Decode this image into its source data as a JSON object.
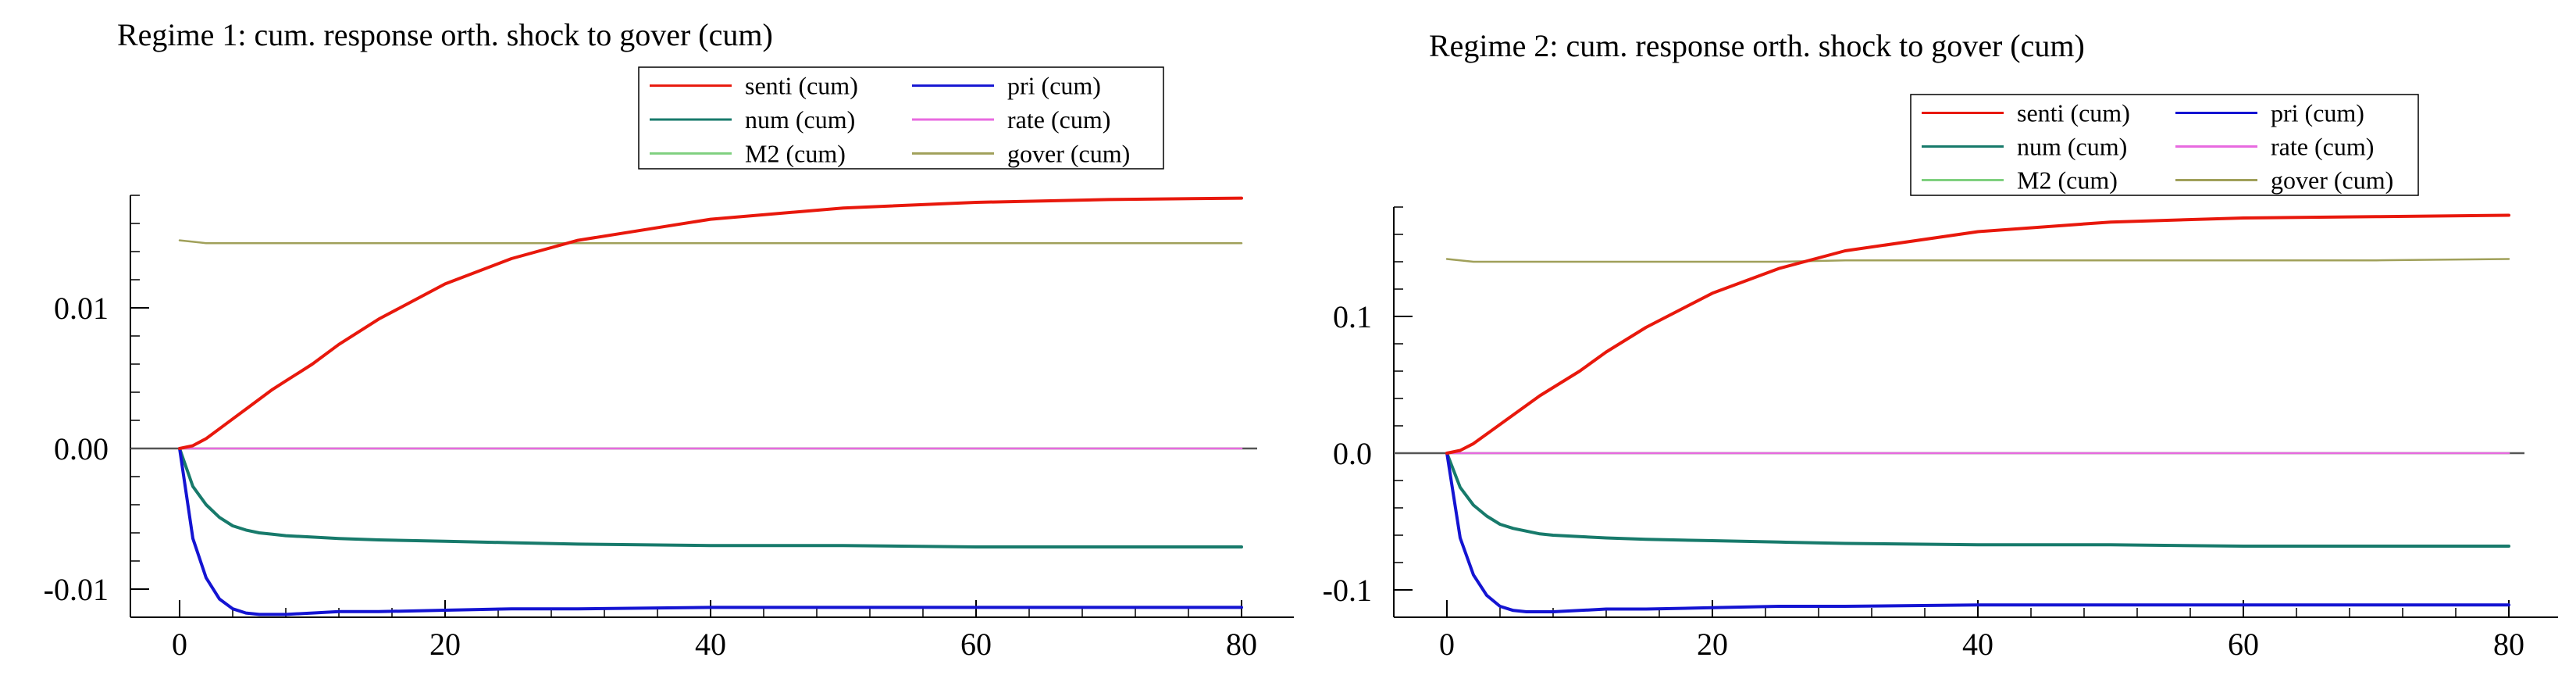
{
  "chart_data": [
    {
      "type": "line",
      "title": "Regime 1: cum. response orth. shock to gover (cum)",
      "xlabel": "",
      "ylabel": "",
      "xlim": [
        0,
        80
      ],
      "ylim": [
        -0.012,
        0.018
      ],
      "xticks": [
        0,
        20,
        40,
        60,
        80
      ],
      "xtick_labels": [
        "0",
        "20",
        "40",
        "60",
        "80"
      ],
      "yticks": [
        -0.01,
        0.0,
        0.01
      ],
      "ytick_labels": [
        "-0.01",
        "0.00",
        "0.01"
      ],
      "legend_position": "top-right",
      "x": [
        0,
        1,
        2,
        3,
        4,
        5,
        6,
        7,
        8,
        10,
        12,
        15,
        20,
        25,
        30,
        40,
        50,
        60,
        70,
        80
      ],
      "series": [
        {
          "name": "senti (cum)",
          "color": "#e8180c",
          "values": [
            0,
            0.0002,
            0.0007,
            0.0014,
            0.0021,
            0.0028,
            0.0035,
            0.0042,
            0.0048,
            0.006,
            0.0074,
            0.0092,
            0.0117,
            0.0135,
            0.0148,
            0.0163,
            0.0171,
            0.0175,
            0.0177,
            0.0178
          ]
        },
        {
          "name": "pri (cum)",
          "color": "#1414d2",
          "values": [
            0,
            -0.0064,
            -0.0092,
            -0.0107,
            -0.0114,
            -0.0117,
            -0.0118,
            -0.0118,
            -0.0118,
            -0.0117,
            -0.0116,
            -0.0116,
            -0.0115,
            -0.0114,
            -0.0114,
            -0.0113,
            -0.0113,
            -0.0113,
            -0.0113,
            -0.0113
          ]
        },
        {
          "name": "num (cum)",
          "color": "#177a6b",
          "values": [
            0,
            -0.0027,
            -0.004,
            -0.0049,
            -0.0055,
            -0.0058,
            -0.006,
            -0.0061,
            -0.0062,
            -0.0063,
            -0.0064,
            -0.0065,
            -0.0066,
            -0.0067,
            -0.0068,
            -0.0069,
            -0.0069,
            -0.007,
            -0.007,
            -0.007
          ]
        },
        {
          "name": "rate (cum)",
          "color": "#e86ae0",
          "values": [
            0,
            0,
            0,
            0,
            0,
            0,
            0,
            0,
            0,
            0,
            0,
            0,
            0,
            0,
            0,
            0,
            0,
            0,
            0,
            0
          ]
        },
        {
          "name": "M2 (cum)",
          "color": "#7fd07f",
          "values": [
            0,
            0,
            0,
            0,
            0,
            0,
            0,
            0,
            0,
            0,
            0,
            0,
            0,
            0,
            0,
            0,
            0,
            0,
            0,
            0
          ]
        },
        {
          "name": "gover (cum)",
          "color": "#a0a05a",
          "values": [
            0.0148,
            0.0147,
            0.0146,
            0.0146,
            0.0146,
            0.0146,
            0.0146,
            0.0146,
            0.0146,
            0.0146,
            0.0146,
            0.0146,
            0.0146,
            0.0146,
            0.0146,
            0.0146,
            0.0146,
            0.0146,
            0.0146,
            0.0146
          ]
        }
      ]
    },
    {
      "type": "line",
      "title": "Regime 2: cum. response orth. shock to gover (cum)",
      "xlabel": "",
      "ylabel": "",
      "xlim": [
        0,
        80
      ],
      "ylim": [
        -0.12,
        0.18
      ],
      "xticks": [
        0,
        20,
        40,
        60,
        80
      ],
      "xtick_labels": [
        "0",
        "20",
        "40",
        "60",
        "80"
      ],
      "yticks": [
        -0.1,
        0.0,
        0.1
      ],
      "ytick_labels": [
        "-0.1",
        "0.0",
        "0.1"
      ],
      "legend_position": "top-right",
      "x": [
        0,
        1,
        2,
        3,
        4,
        5,
        6,
        7,
        8,
        10,
        12,
        15,
        20,
        25,
        30,
        40,
        50,
        60,
        70,
        80
      ],
      "series": [
        {
          "name": "senti (cum)",
          "color": "#e8180c",
          "values": [
            0,
            0.002,
            0.007,
            0.014,
            0.021,
            0.028,
            0.035,
            0.042,
            0.048,
            0.06,
            0.074,
            0.092,
            0.117,
            0.135,
            0.148,
            0.162,
            0.169,
            0.172,
            0.173,
            0.174
          ]
        },
        {
          "name": "pri (cum)",
          "color": "#1414d2",
          "values": [
            0,
            -0.062,
            -0.089,
            -0.104,
            -0.112,
            -0.115,
            -0.116,
            -0.116,
            -0.116,
            -0.115,
            -0.114,
            -0.114,
            -0.113,
            -0.112,
            -0.112,
            -0.111,
            -0.111,
            -0.111,
            -0.111,
            -0.111
          ]
        },
        {
          "name": "num (cum)",
          "color": "#177a6b",
          "values": [
            0,
            -0.025,
            -0.038,
            -0.046,
            -0.052,
            -0.055,
            -0.057,
            -0.059,
            -0.06,
            -0.061,
            -0.062,
            -0.063,
            -0.064,
            -0.065,
            -0.066,
            -0.067,
            -0.067,
            -0.068,
            -0.068,
            -0.068
          ]
        },
        {
          "name": "rate (cum)",
          "color": "#e86ae0",
          "values": [
            0,
            0,
            0,
            0,
            0,
            0,
            0,
            0,
            0,
            0,
            0,
            0,
            0,
            0,
            0,
            0,
            0,
            0,
            0,
            0
          ]
        },
        {
          "name": "M2 (cum)",
          "color": "#7fd07f",
          "values": [
            0,
            0,
            0,
            0,
            0,
            0,
            0,
            0,
            0,
            0,
            0,
            0,
            0,
            0,
            0,
            0,
            0,
            0,
            0,
            0
          ]
        },
        {
          "name": "gover (cum)",
          "color": "#a0a05a",
          "values": [
            0.142,
            0.141,
            0.14,
            0.14,
            0.14,
            0.14,
            0.14,
            0.14,
            0.14,
            0.14,
            0.14,
            0.14,
            0.14,
            0.14,
            0.141,
            0.141,
            0.141,
            0.141,
            0.141,
            0.142
          ]
        }
      ]
    }
  ]
}
